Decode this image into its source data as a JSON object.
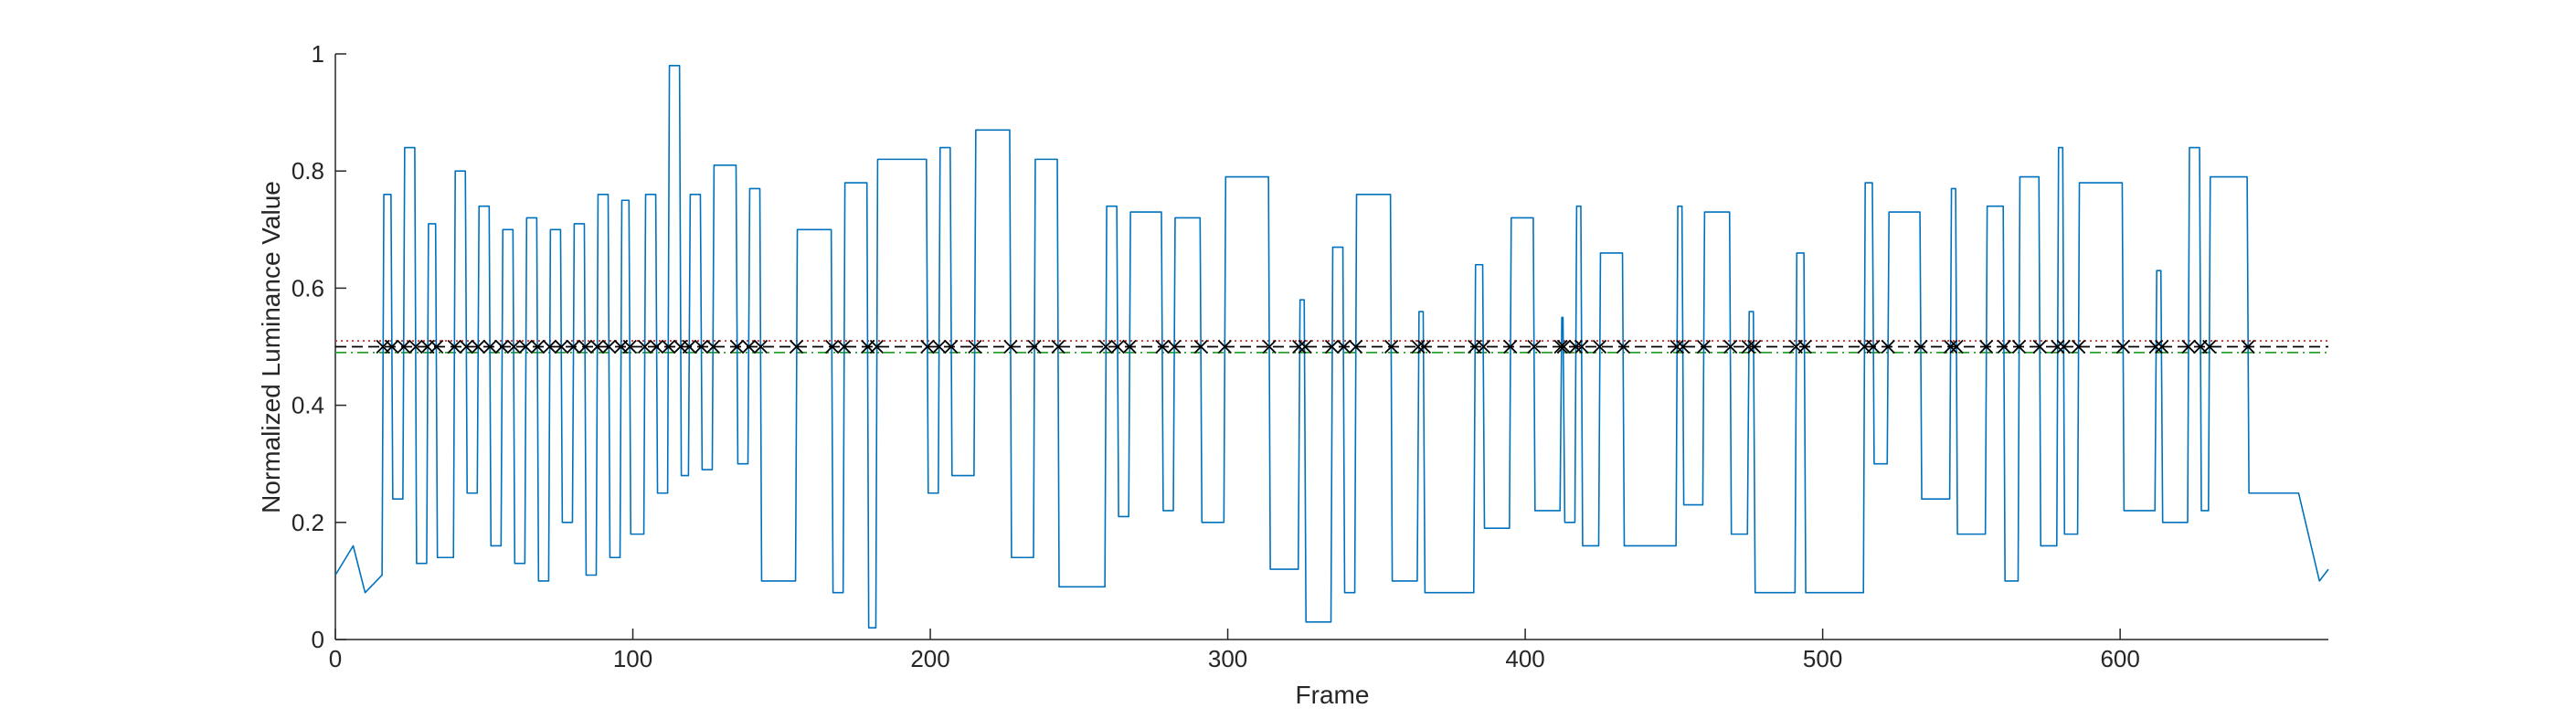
{
  "chart_data": {
    "type": "line",
    "xlabel": "Frame",
    "ylabel": "Normalized Luminance Value",
    "xlim": [
      0,
      670
    ],
    "ylim": [
      0,
      1
    ],
    "xticks": [
      0,
      100,
      200,
      300,
      400,
      500,
      600
    ],
    "yticks": [
      0,
      0.2,
      0.4,
      0.6,
      0.8,
      1
    ],
    "thresholds": [
      {
        "value": 0.51,
        "color": "#d62728",
        "dash": "dotted"
      },
      {
        "value": 0.5,
        "color": "#000000",
        "dash": "dashed"
      },
      {
        "value": 0.49,
        "color": "#2ca02c",
        "dash": "dashdot"
      }
    ],
    "series": [
      {
        "type": "line",
        "color": "#0072bd",
        "x": [
          0,
          6,
          10,
          15.7,
          16.3,
          18.7,
          19.3,
          22.7,
          23.3,
          26.7,
          27.3,
          30.7,
          31.3,
          33.7,
          34.3,
          39.7,
          40.3,
          43.7,
          44.3,
          47.7,
          48.3,
          51.7,
          52.3,
          55.7,
          56.3,
          59.7,
          60.3,
          63.7,
          64.3,
          67.7,
          68.3,
          71.7,
          72.3,
          75.7,
          76.3,
          79.7,
          80.3,
          83.7,
          84.3,
          87.7,
          88.3,
          91.7,
          92.3,
          95.7,
          96.3,
          98.7,
          99.3,
          103.7,
          104.3,
          107.7,
          108.3,
          111.7,
          112.3,
          115.7,
          116.3,
          118.7,
          119.3,
          122.7,
          123.3,
          126.7,
          127.3,
          134.7,
          135.3,
          138.7,
          139.3,
          142.7,
          143.3,
          154.7,
          155.3,
          166.7,
          167.3,
          170.7,
          171.3,
          178.7,
          179.3,
          181.7,
          182.3,
          198.7,
          199.3,
          202.7,
          203.3,
          206.7,
          207.3,
          214.7,
          215.3,
          226.7,
          227.3,
          234.7,
          235.3,
          242.7,
          243.3,
          258.7,
          259.3,
          262.7,
          263.3,
          266.7,
          267.3,
          277.7,
          278.3,
          281.7,
          282.3,
          290.7,
          291.3,
          298.7,
          299.3,
          313.7,
          314.3,
          323.7,
          324.3,
          325.7,
          326.3,
          334.7,
          335.3,
          338.7,
          339.3,
          342.7,
          343.3,
          354.7,
          355.3,
          363.7,
          364.3,
          365.7,
          366.3,
          382.7,
          383.3,
          385.7,
          386.3,
          394.7,
          395.3,
          402.7,
          403.3,
          411.7,
          412.3,
          412.7,
          413.3,
          416.7,
          417.3,
          418.7,
          419.3,
          424.7,
          425.3,
          432.7,
          433.3,
          450.7,
          451.3,
          452.7,
          453.3,
          459.7,
          460.3,
          468.7,
          469.3,
          474.7,
          475.3,
          476.7,
          477.3,
          490.7,
          491.3,
          493.7,
          494.3,
          513.7,
          514.3,
          516.7,
          517.3,
          521.7,
          522.3,
          532.7,
          533.3,
          542.7,
          543.3,
          544.7,
          545.3,
          554.7,
          555.3,
          560.7,
          561.3,
          565.7,
          566.3,
          572.7,
          573.3,
          578.7,
          579.3,
          580.7,
          581.3,
          585.7,
          586.3,
          600.7,
          601.3,
          611.7,
          612.3,
          613.7,
          614.3,
          622.7,
          623.3,
          626.7,
          627.3,
          629.7,
          630.3,
          642.7,
          643.3,
          660,
          667,
          670
        ],
        "values": [
          0.11,
          0.16,
          0.08,
          0.11,
          0.76,
          0.76,
          0.24,
          0.24,
          0.84,
          0.84,
          0.13,
          0.13,
          0.71,
          0.71,
          0.14,
          0.14,
          0.8,
          0.8,
          0.25,
          0.25,
          0.74,
          0.74,
          0.16,
          0.16,
          0.7,
          0.7,
          0.13,
          0.13,
          0.72,
          0.72,
          0.1,
          0.1,
          0.7,
          0.7,
          0.2,
          0.2,
          0.71,
          0.71,
          0.11,
          0.11,
          0.76,
          0.76,
          0.14,
          0.14,
          0.75,
          0.75,
          0.18,
          0.18,
          0.76,
          0.76,
          0.25,
          0.25,
          0.98,
          0.98,
          0.28,
          0.28,
          0.76,
          0.76,
          0.29,
          0.29,
          0.81,
          0.81,
          0.3,
          0.3,
          0.77,
          0.77,
          0.1,
          0.1,
          0.7,
          0.7,
          0.08,
          0.08,
          0.78,
          0.78,
          0.02,
          0.02,
          0.82,
          0.82,
          0.25,
          0.25,
          0.84,
          0.84,
          0.28,
          0.28,
          0.87,
          0.87,
          0.14,
          0.14,
          0.82,
          0.82,
          0.09,
          0.09,
          0.74,
          0.74,
          0.21,
          0.21,
          0.73,
          0.73,
          0.22,
          0.22,
          0.72,
          0.72,
          0.2,
          0.2,
          0.79,
          0.79,
          0.12,
          0.12,
          0.58,
          0.58,
          0.03,
          0.03,
          0.67,
          0.67,
          0.08,
          0.08,
          0.76,
          0.76,
          0.1,
          0.1,
          0.56,
          0.56,
          0.08,
          0.08,
          0.64,
          0.64,
          0.19,
          0.19,
          0.72,
          0.72,
          0.22,
          0.22,
          0.55,
          0.55,
          0.2,
          0.2,
          0.74,
          0.74,
          0.16,
          0.16,
          0.66,
          0.66,
          0.16,
          0.16,
          0.74,
          0.74,
          0.23,
          0.23,
          0.73,
          0.73,
          0.18,
          0.18,
          0.56,
          0.56,
          0.08,
          0.08,
          0.66,
          0.66,
          0.08,
          0.08,
          0.78,
          0.78,
          0.3,
          0.3,
          0.73,
          0.73,
          0.24,
          0.24,
          0.77,
          0.77,
          0.18,
          0.18,
          0.74,
          0.74,
          0.1,
          0.1,
          0.79,
          0.79,
          0.16,
          0.16,
          0.84,
          0.84,
          0.18,
          0.18,
          0.78,
          0.78,
          0.22,
          0.22,
          0.63,
          0.63,
          0.2,
          0.2,
          0.84,
          0.84,
          0.22,
          0.22,
          0.79,
          0.79,
          0.25,
          0.25,
          0.1,
          0.12
        ]
      },
      {
        "type": "scatter",
        "color": "#000000",
        "x": [
          16,
          19,
          23,
          27,
          31,
          34,
          40,
          44,
          48,
          52,
          56,
          60,
          64,
          68,
          72,
          76,
          80,
          84,
          88,
          92,
          96,
          99,
          104,
          108,
          112,
          116,
          119,
          123,
          127,
          135,
          139,
          143,
          155,
          167,
          171,
          179,
          182,
          199,
          203,
          207,
          215,
          227,
          235,
          243,
          259,
          263,
          267,
          278,
          282,
          291,
          299,
          314,
          324,
          326,
          335,
          339,
          343,
          355,
          364,
          366,
          383,
          386,
          395,
          403,
          412,
          413,
          417,
          419,
          425,
          433,
          451,
          453,
          460,
          469,
          475,
          477,
          491,
          494,
          514,
          517,
          522,
          533,
          543,
          545,
          555,
          561,
          566,
          573,
          579,
          581,
          586,
          601,
          612,
          614,
          623,
          627,
          630,
          643
        ],
        "values": [
          0.5,
          0.5,
          0.5,
          0.5,
          0.5,
          0.5,
          0.5,
          0.5,
          0.5,
          0.5,
          0.5,
          0.5,
          0.5,
          0.5,
          0.5,
          0.5,
          0.5,
          0.5,
          0.5,
          0.5,
          0.5,
          0.5,
          0.5,
          0.5,
          0.5,
          0.5,
          0.5,
          0.5,
          0.5,
          0.5,
          0.5,
          0.5,
          0.5,
          0.5,
          0.5,
          0.5,
          0.5,
          0.5,
          0.5,
          0.5,
          0.5,
          0.5,
          0.5,
          0.5,
          0.5,
          0.5,
          0.5,
          0.5,
          0.5,
          0.5,
          0.5,
          0.5,
          0.5,
          0.5,
          0.5,
          0.5,
          0.5,
          0.5,
          0.5,
          0.5,
          0.5,
          0.5,
          0.5,
          0.5,
          0.5,
          0.5,
          0.5,
          0.5,
          0.5,
          0.5,
          0.5,
          0.5,
          0.5,
          0.5,
          0.5,
          0.5,
          0.5,
          0.5,
          0.5,
          0.5,
          0.5,
          0.5,
          0.5,
          0.5,
          0.5,
          0.5,
          0.5,
          0.5,
          0.5,
          0.5,
          0.5,
          0.5,
          0.5,
          0.5,
          0.5,
          0.5,
          0.5,
          0.5
        ]
      }
    ]
  }
}
